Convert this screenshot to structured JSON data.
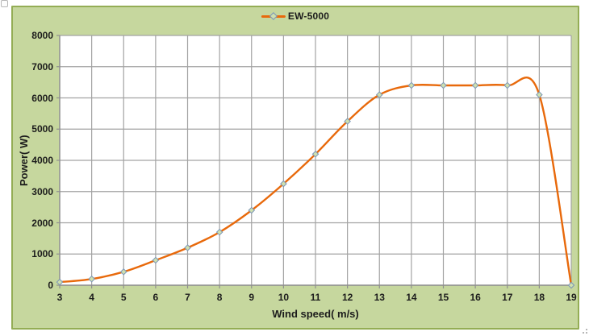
{
  "chart_data": {
    "type": "line",
    "title": "",
    "smooth": true,
    "x": [
      3,
      4,
      5,
      6,
      7,
      8,
      9,
      10,
      11,
      12,
      13,
      14,
      15,
      16,
      17,
      18,
      19
    ],
    "series": [
      {
        "name": "EW-5000",
        "values": [
          100,
          200,
          430,
          800,
          1200,
          1700,
          2400,
          3250,
          4200,
          5250,
          6100,
          6400,
          6400,
          6400,
          6400,
          6100,
          0
        ]
      }
    ],
    "xlabel": "Wind speed( m/s)",
    "ylabel": "Power( W)",
    "xlim": [
      3,
      19
    ],
    "ylim": [
      0,
      8000
    ],
    "x_ticks": [
      3,
      4,
      5,
      6,
      7,
      8,
      9,
      10,
      11,
      12,
      13,
      14,
      15,
      16,
      17,
      18,
      19
    ],
    "y_ticks": [
      0,
      1000,
      2000,
      3000,
      4000,
      5000,
      6000,
      7000,
      8000
    ],
    "grid": true,
    "legend_position": "top-center"
  },
  "colors": {
    "series_line": "#e8690b",
    "marker_fill": "#cfe0ae",
    "marker_stroke": "#7b96b8",
    "chart_background": "#c6d79e",
    "chart_border": "#94ad55",
    "plot_background": "#ffffff",
    "gridline": "#a3a3a3",
    "axis_line": "#8f8f8f",
    "text": "#1c1c1c"
  }
}
